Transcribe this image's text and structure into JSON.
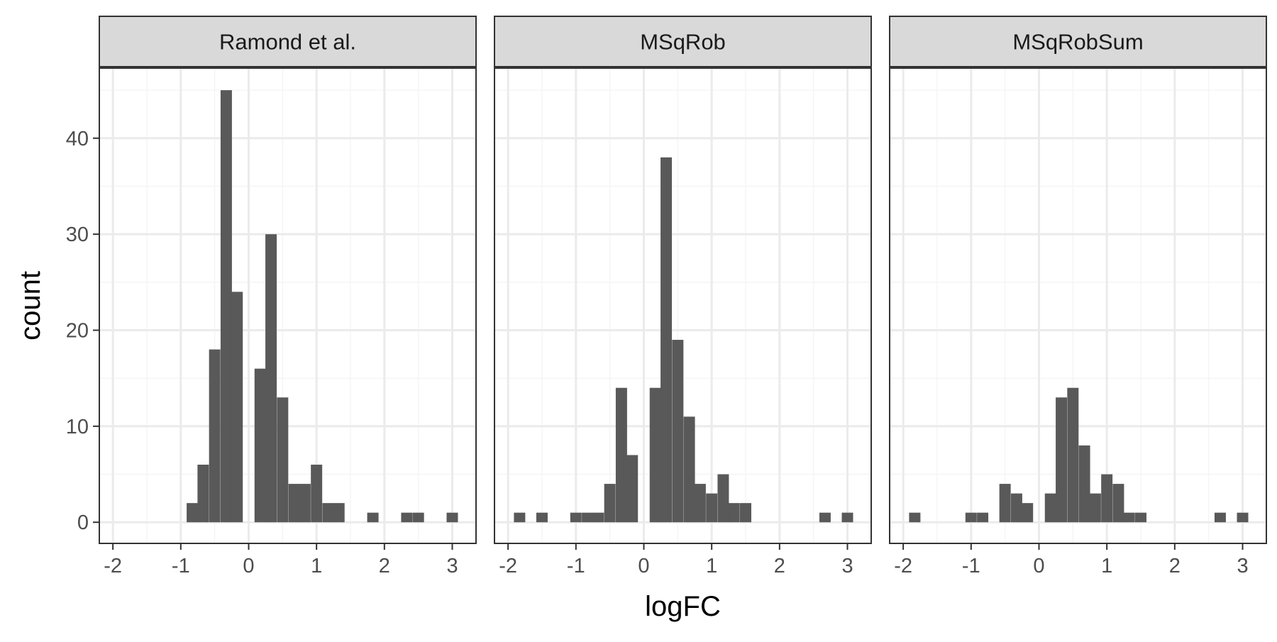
{
  "chart_data": {
    "type": "bar",
    "chart_subtype": "faceted histogram",
    "xlabel": "logFC",
    "ylabel": "count",
    "x_ticks": [
      -2,
      -1,
      0,
      1,
      2,
      3
    ],
    "y_ticks": [
      0,
      10,
      20,
      30,
      40
    ],
    "xlim": [
      -2.2,
      3.35
    ],
    "ylim": [
      -2.2,
      47.3
    ],
    "bin_width": 0.167,
    "grid": true,
    "theme": "white panel, light grey grid, dark grey bars, grey facet strips",
    "colors": {
      "bar": "#595959",
      "strip": "#d9d9d9",
      "grid_major": "#ebebeb",
      "grid_minor": "#f5f5f5",
      "panel_border": "#333333"
    },
    "facets": [
      {
        "label": "Ramond et al.",
        "bins": [
          {
            "x": -0.83,
            "count": 2
          },
          {
            "x": -0.67,
            "count": 6
          },
          {
            "x": -0.5,
            "count": 18
          },
          {
            "x": -0.33,
            "count": 45
          },
          {
            "x": -0.17,
            "count": 24
          },
          {
            "x": 0.17,
            "count": 16
          },
          {
            "x": 0.33,
            "count": 30
          },
          {
            "x": 0.5,
            "count": 13
          },
          {
            "x": 0.67,
            "count": 4
          },
          {
            "x": 0.83,
            "count": 4
          },
          {
            "x": 1.0,
            "count": 6
          },
          {
            "x": 1.17,
            "count": 2
          },
          {
            "x": 1.33,
            "count": 2
          },
          {
            "x": 1.83,
            "count": 1
          },
          {
            "x": 2.33,
            "count": 1
          },
          {
            "x": 2.5,
            "count": 1
          },
          {
            "x": 3.0,
            "count": 1
          }
        ]
      },
      {
        "label": "MSqRob",
        "bins": [
          {
            "x": -1.83,
            "count": 1
          },
          {
            "x": -1.5,
            "count": 1
          },
          {
            "x": -1.0,
            "count": 1
          },
          {
            "x": -0.83,
            "count": 1
          },
          {
            "x": -0.67,
            "count": 1
          },
          {
            "x": -0.5,
            "count": 4
          },
          {
            "x": -0.33,
            "count": 14
          },
          {
            "x": -0.17,
            "count": 7
          },
          {
            "x": 0.17,
            "count": 14
          },
          {
            "x": 0.33,
            "count": 38
          },
          {
            "x": 0.5,
            "count": 19
          },
          {
            "x": 0.67,
            "count": 11
          },
          {
            "x": 0.83,
            "count": 4
          },
          {
            "x": 1.0,
            "count": 3
          },
          {
            "x": 1.17,
            "count": 5
          },
          {
            "x": 1.33,
            "count": 2
          },
          {
            "x": 1.5,
            "count": 2
          },
          {
            "x": 2.67,
            "count": 1
          },
          {
            "x": 3.0,
            "count": 1
          }
        ]
      },
      {
        "label": "MSqRobSum",
        "bins": [
          {
            "x": -1.83,
            "count": 1
          },
          {
            "x": -1.0,
            "count": 1
          },
          {
            "x": -0.83,
            "count": 1
          },
          {
            "x": -0.5,
            "count": 4
          },
          {
            "x": -0.33,
            "count": 3
          },
          {
            "x": -0.17,
            "count": 2
          },
          {
            "x": 0.17,
            "count": 3
          },
          {
            "x": 0.33,
            "count": 13
          },
          {
            "x": 0.5,
            "count": 14
          },
          {
            "x": 0.67,
            "count": 8
          },
          {
            "x": 0.83,
            "count": 3
          },
          {
            "x": 1.0,
            "count": 5
          },
          {
            "x": 1.17,
            "count": 4
          },
          {
            "x": 1.33,
            "count": 1
          },
          {
            "x": 1.5,
            "count": 1
          },
          {
            "x": 2.67,
            "count": 1
          },
          {
            "x": 3.0,
            "count": 1
          }
        ]
      }
    ]
  }
}
